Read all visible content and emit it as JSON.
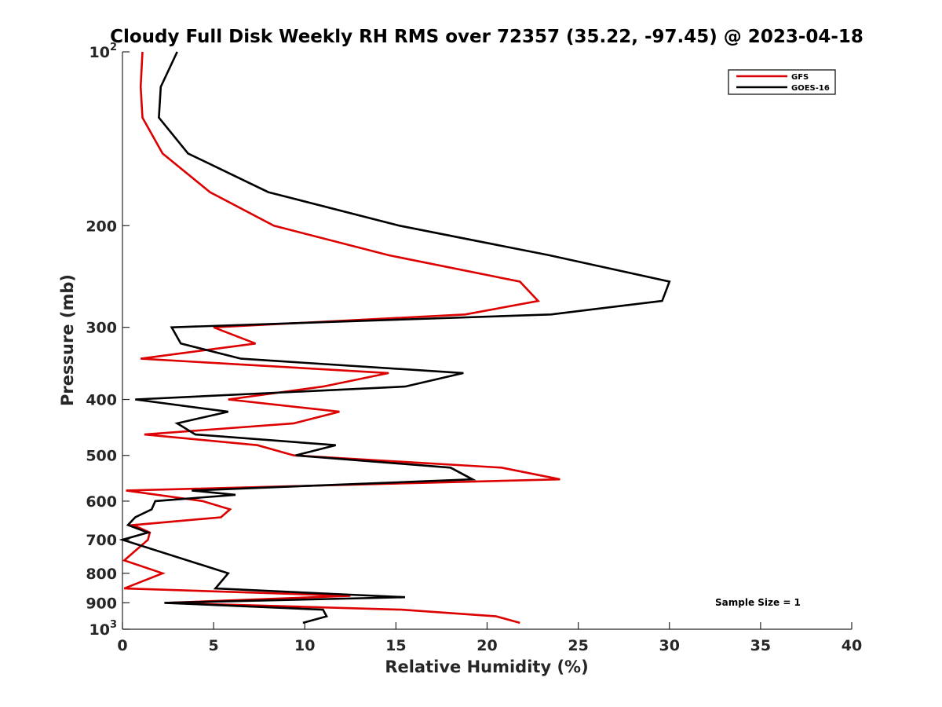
{
  "chart_data": {
    "type": "line",
    "title": "Cloudy Full Disk Weekly RH RMS over 72357 (35.22, -97.45) @ 2023-04-18",
    "xlabel": "Relative Humidity (%)",
    "ylabel": "Pressure (mb)",
    "xlim": [
      0,
      40
    ],
    "ylim": [
      100,
      1000
    ],
    "yscale": "log",
    "y_reversed": true,
    "grid": false,
    "legend_position": "top-right",
    "x_ticks": [
      0,
      5,
      10,
      15,
      20,
      25,
      30,
      35,
      40
    ],
    "y_ticks": [
      {
        "value": 100,
        "base": "10",
        "exp": "2"
      },
      {
        "value": 200,
        "label": "200"
      },
      {
        "value": 300,
        "label": "300"
      },
      {
        "value": 400,
        "label": "400"
      },
      {
        "value": 500,
        "label": "500"
      },
      {
        "value": 600,
        "label": "600"
      },
      {
        "value": 700,
        "label": "700"
      },
      {
        "value": 800,
        "label": "800"
      },
      {
        "value": 900,
        "label": "900"
      },
      {
        "value": 1000,
        "base": "10",
        "exp": "3"
      }
    ],
    "series": [
      {
        "name": "GFS",
        "color": "#dd0000",
        "points": [
          [
            1.1,
            100
          ],
          [
            1.0,
            115
          ],
          [
            1.1,
            130
          ],
          [
            2.2,
            150
          ],
          [
            4.8,
            175
          ],
          [
            8.3,
            200
          ],
          [
            14.6,
            225
          ],
          [
            21.8,
            250
          ],
          [
            22.8,
            270
          ],
          [
            18.8,
            285
          ],
          [
            5.0,
            300
          ],
          [
            7.3,
            320
          ],
          [
            1.0,
            340
          ],
          [
            14.6,
            360
          ],
          [
            11.0,
            380
          ],
          [
            5.8,
            400
          ],
          [
            11.9,
            420
          ],
          [
            9.4,
            440
          ],
          [
            1.2,
            460
          ],
          [
            7.4,
            480
          ],
          [
            9.4,
            500
          ],
          [
            20.8,
            525
          ],
          [
            24.0,
            550
          ],
          [
            0.2,
            575
          ],
          [
            4.4,
            600
          ],
          [
            5.9,
            620
          ],
          [
            5.4,
            640
          ],
          [
            0.6,
            660
          ],
          [
            1.5,
            680
          ],
          [
            1.4,
            700
          ],
          [
            0.1,
            760
          ],
          [
            2.2,
            800
          ],
          [
            0.1,
            850
          ],
          [
            12.5,
            875
          ],
          [
            2.4,
            900
          ],
          [
            15.3,
            925
          ],
          [
            20.5,
            950
          ],
          [
            21.8,
            975
          ]
        ]
      },
      {
        "name": "GOES-16",
        "color": "#000000",
        "points": [
          [
            3.0,
            100
          ],
          [
            2.1,
            115
          ],
          [
            2.0,
            130
          ],
          [
            3.6,
            150
          ],
          [
            8.0,
            175
          ],
          [
            15.2,
            200
          ],
          [
            23.4,
            225
          ],
          [
            30.0,
            250
          ],
          [
            29.6,
            270
          ],
          [
            23.5,
            285
          ],
          [
            2.7,
            300
          ],
          [
            3.2,
            320
          ],
          [
            6.5,
            340
          ],
          [
            18.7,
            360
          ],
          [
            15.5,
            380
          ],
          [
            0.7,
            400
          ],
          [
            5.8,
            420
          ],
          [
            3.0,
            440
          ],
          [
            4.0,
            460
          ],
          [
            11.7,
            480
          ],
          [
            9.5,
            500
          ],
          [
            18.0,
            525
          ],
          [
            19.2,
            550
          ],
          [
            3.8,
            575
          ],
          [
            6.2,
            585
          ],
          [
            1.8,
            600
          ],
          [
            1.6,
            620
          ],
          [
            0.7,
            640
          ],
          [
            0.3,
            660
          ],
          [
            1.4,
            680
          ],
          [
            0.0,
            700
          ],
          [
            5.8,
            800
          ],
          [
            5.1,
            850
          ],
          [
            12.0,
            870
          ],
          [
            15.5,
            880
          ],
          [
            2.3,
            900
          ],
          [
            11.0,
            925
          ],
          [
            11.2,
            950
          ],
          [
            9.9,
            975
          ]
        ]
      }
    ],
    "annotation": "Sample Size = 1"
  }
}
